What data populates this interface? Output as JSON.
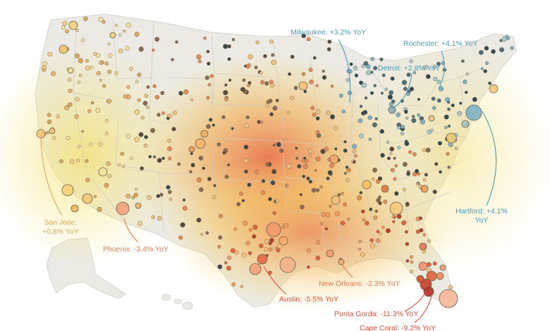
{
  "colors": {
    "background": "#ffffff",
    "land": "#eceae4",
    "border": "#cfccc4",
    "heat_hot": "#e9673a",
    "heat_mid": "#f2a644",
    "heat_warm": "#f6d85a",
    "positive_label": "#4a9bb8",
    "negative_label": "#df4e34",
    "mild_negative_label": "#e47a52",
    "mild_positive_label": "#d9a85e"
  },
  "callouts": {
    "milwaukee": "Milwaukee: +3.2% YoY",
    "rochester": "Rochester: +4.1% YoY",
    "detroit": "Detroit: +2.8% YoY",
    "hartford_line1": "Hartford: +4.1%",
    "hartford_line2": "YoY",
    "san_jose_line1": "San Jose:",
    "san_jose_line2": "+0.8% YoY",
    "phoenix": "Phoenix: -3.4% YoY",
    "austin": "Austin: -5.5% YoY",
    "new_orleans": "New Orleans: -2.3% YoY",
    "punta_gorda": "Punta Gorda: -11.3% YoY",
    "cape_coral": "Cape Coral: -9.2% YoY"
  },
  "markets": [
    {
      "name": "Milwaukee",
      "yoy": 3.2
    },
    {
      "name": "Rochester",
      "yoy": 4.1
    },
    {
      "name": "Detroit",
      "yoy": 2.8
    },
    {
      "name": "Hartford",
      "yoy": 4.1
    },
    {
      "name": "San Jose",
      "yoy": 0.8
    },
    {
      "name": "Phoenix",
      "yoy": -3.4
    },
    {
      "name": "Austin",
      "yoy": -5.5
    },
    {
      "name": "New Orleans",
      "yoy": -2.3
    },
    {
      "name": "Punta Gorda",
      "yoy": -11.3
    },
    {
      "name": "Cape Coral",
      "yoy": -9.2
    }
  ]
}
